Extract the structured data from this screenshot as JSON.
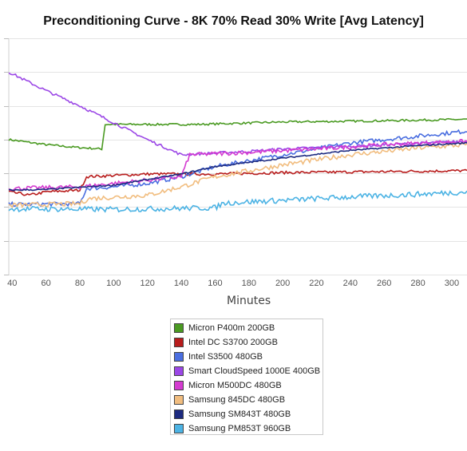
{
  "chart_data": {
    "type": "line",
    "title": "Preconditioning Curve - 8K 70% Read 30% Write [Avg Latency]",
    "xlabel": "Minutes",
    "ylabel": "",
    "x_ticks": [
      40,
      60,
      80,
      100,
      120,
      140,
      160,
      180,
      200,
      220,
      240,
      260,
      280,
      300
    ],
    "xlim": [
      38,
      309
    ],
    "ylim": [
      0,
      7
    ],
    "grid": true,
    "legend_position": "bottom",
    "series": [
      {
        "name": "Micron P400m 200GB",
        "color": "#4a9a22",
        "points": [
          [
            38,
            4.0
          ],
          [
            60,
            3.85
          ],
          [
            75,
            3.78
          ],
          [
            93,
            3.72
          ],
          [
            95,
            4.45
          ],
          [
            150,
            4.45
          ],
          [
            200,
            4.52
          ],
          [
            250,
            4.55
          ],
          [
            309,
            4.6
          ]
        ],
        "noise": 0.03
      },
      {
        "name": "Intel DC S3700 200GB",
        "color": "#b81c1c",
        "points": [
          [
            38,
            2.45
          ],
          [
            45,
            2.4
          ],
          [
            50,
            2.35
          ],
          [
            60,
            2.45
          ],
          [
            80,
            2.5
          ],
          [
            84,
            2.9
          ],
          [
            120,
            2.98
          ],
          [
            160,
            2.98
          ],
          [
            200,
            3.02
          ],
          [
            260,
            3.05
          ],
          [
            309,
            3.08
          ]
        ],
        "noise": 0.04
      },
      {
        "name": "Intel S3500 480GB",
        "color": "#4a6ee0",
        "points": [
          [
            38,
            2.08
          ],
          [
            80,
            2.1
          ],
          [
            84,
            2.55
          ],
          [
            100,
            2.6
          ],
          [
            120,
            2.7
          ],
          [
            140,
            2.9
          ],
          [
            160,
            3.2
          ],
          [
            200,
            3.55
          ],
          [
            240,
            3.9
          ],
          [
            280,
            4.1
          ],
          [
            309,
            4.25
          ]
        ],
        "noise": 0.06
      },
      {
        "name": "Smart CloudSpeed 1000E 400GB",
        "color": "#9b47e6",
        "points": [
          [
            38,
            6.0
          ],
          [
            60,
            5.45
          ],
          [
            80,
            5.0
          ],
          [
            100,
            4.5
          ],
          [
            120,
            4.0
          ],
          [
            140,
            3.55
          ],
          [
            160,
            3.6
          ],
          [
            180,
            3.65
          ],
          [
            200,
            3.72
          ],
          [
            240,
            3.8
          ],
          [
            309,
            3.95
          ]
        ],
        "noise": 0.04
      },
      {
        "name": "Micron M500DC 480GB",
        "color": "#d43bd0",
        "points": [
          [
            38,
            2.55
          ],
          [
            80,
            2.6
          ],
          [
            140,
            2.9
          ],
          [
            145,
            3.55
          ],
          [
            180,
            3.62
          ],
          [
            220,
            3.72
          ],
          [
            260,
            3.85
          ],
          [
            309,
            3.95
          ]
        ],
        "noise": 0.06
      },
      {
        "name": "Samsung 845DC 480GB",
        "color": "#f1bd7f",
        "points": [
          [
            38,
            2.05
          ],
          [
            80,
            2.1
          ],
          [
            85,
            2.25
          ],
          [
            120,
            2.35
          ],
          [
            140,
            2.6
          ],
          [
            160,
            2.9
          ],
          [
            200,
            3.25
          ],
          [
            240,
            3.55
          ],
          [
            280,
            3.75
          ],
          [
            309,
            3.85
          ]
        ],
        "noise": 0.07
      },
      {
        "name": "Samsung SM843T 480GB",
        "color": "#1c2a80",
        "points": [
          [
            38,
            2.5
          ],
          [
            60,
            2.52
          ],
          [
            100,
            2.65
          ],
          [
            140,
            2.98
          ],
          [
            160,
            3.2
          ],
          [
            200,
            3.45
          ],
          [
            240,
            3.68
          ],
          [
            280,
            3.82
          ],
          [
            309,
            3.9
          ]
        ],
        "noise": 0.02
      },
      {
        "name": "Samsung PM853T 960GB",
        "color": "#4cb3e4",
        "points": [
          [
            38,
            1.95
          ],
          [
            100,
            1.93
          ],
          [
            160,
            1.98
          ],
          [
            165,
            2.12
          ],
          [
            200,
            2.2
          ],
          [
            240,
            2.3
          ],
          [
            280,
            2.38
          ],
          [
            309,
            2.45
          ]
        ],
        "noise": 0.08
      }
    ]
  }
}
